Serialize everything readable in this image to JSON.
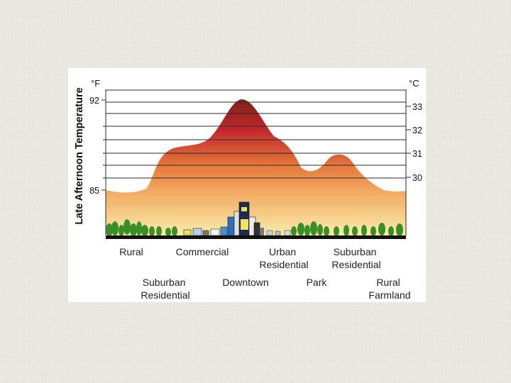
{
  "diagram": {
    "y_axis_title": "Late Afternoon Temperature",
    "unit_f": "°F",
    "unit_c": "°C",
    "fahrenheit_ticks": [
      "92",
      "85"
    ],
    "celsius_ticks": [
      "33",
      "32",
      "31",
      "30"
    ],
    "zones_row1": [
      {
        "name": "rural",
        "lines": [
          "Rural"
        ]
      },
      {
        "name": "commercial",
        "lines": [
          "Commercial"
        ]
      },
      {
        "name": "urban-residential",
        "lines": [
          "Urban",
          "Residential"
        ]
      },
      {
        "name": "suburban-residential-right",
        "lines": [
          "Suburban",
          "Residential"
        ]
      }
    ],
    "zones_row2": [
      {
        "name": "suburban-residential-left",
        "lines": [
          "Suburban",
          "Residential"
        ]
      },
      {
        "name": "downtown",
        "lines": [
          "Downtown"
        ]
      },
      {
        "name": "park",
        "lines": [
          "Park"
        ]
      },
      {
        "name": "rural-farmland",
        "lines": [
          "Rural",
          "Farmland"
        ]
      }
    ]
  },
  "colors": {
    "heat_low": "#f7e8a8",
    "heat_mid": "#e8873a",
    "heat_high": "#c0262c",
    "heat_peak": "#7a2418",
    "ground": "#111111",
    "tree": "#3b8d2a"
  }
}
